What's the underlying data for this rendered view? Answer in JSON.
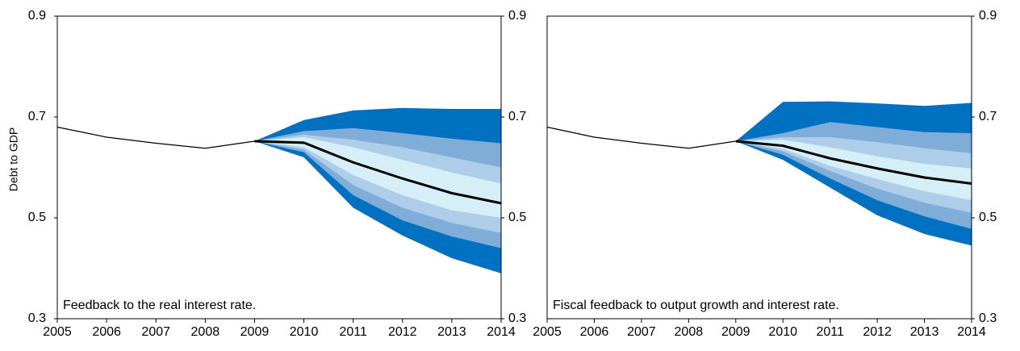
{
  "chart_data": [
    {
      "type": "fan",
      "annotation": "Feedback to the real interest rate.",
      "ylabel": "Debt to GDP",
      "x": [
        2005,
        2006,
        2007,
        2008,
        2009,
        2010,
        2011,
        2012,
        2013,
        2014
      ],
      "xlim": [
        2005,
        2014
      ],
      "xticks": [
        2005,
        2006,
        2007,
        2008,
        2009,
        2010,
        2011,
        2012,
        2013,
        2014
      ],
      "ylim": [
        0.3,
        0.9
      ],
      "yticks": [
        0.3,
        0.5,
        0.7,
        0.9
      ],
      "y2lim": [
        0.3,
        0.9
      ],
      "y2ticks": [
        0.3,
        0.5,
        0.7,
        0.9
      ],
      "bands": [
        {
          "color": "#0070c0",
          "upper": [
            null,
            null,
            null,
            null,
            0.652,
            0.694,
            0.713,
            0.718,
            0.716,
            0.716
          ],
          "lower": [
            null,
            null,
            null,
            null,
            0.652,
            0.62,
            0.52,
            0.465,
            0.42,
            0.39
          ]
        },
        {
          "color": "#7fadd8",
          "upper": [
            null,
            null,
            null,
            null,
            0.652,
            0.672,
            0.678,
            0.668,
            0.657,
            0.648
          ],
          "lower": [
            null,
            null,
            null,
            null,
            0.652,
            0.63,
            0.545,
            0.495,
            0.463,
            0.44
          ]
        },
        {
          "color": "#aecde8",
          "upper": [
            null,
            null,
            null,
            null,
            0.652,
            0.665,
            0.655,
            0.64,
            0.62,
            0.6
          ],
          "lower": [
            null,
            null,
            null,
            null,
            0.652,
            0.635,
            0.565,
            0.52,
            0.49,
            0.47
          ]
        },
        {
          "color": "#d6eef6",
          "upper": [
            null,
            null,
            null,
            null,
            0.652,
            0.66,
            0.64,
            0.615,
            0.59,
            0.568
          ],
          "lower": [
            null,
            null,
            null,
            null,
            0.652,
            0.64,
            0.585,
            0.545,
            0.515,
            0.5
          ]
        }
      ],
      "series": [
        {
          "color": "#000000",
          "width": 1.2,
          "values": [
            0.68,
            0.66,
            0.648,
            0.638,
            0.652,
            null,
            null,
            null,
            null,
            null
          ]
        },
        {
          "color": "#000000",
          "width": 3,
          "values": [
            null,
            null,
            null,
            null,
            0.652,
            0.649,
            0.61,
            0.578,
            0.549,
            0.529
          ]
        }
      ]
    },
    {
      "type": "fan",
      "annotation": "Fiscal feedback to output growth and interest rate.",
      "x": [
        2005,
        2006,
        2007,
        2008,
        2009,
        2010,
        2011,
        2012,
        2013,
        2014
      ],
      "xlim": [
        2005,
        2014
      ],
      "xticks": [
        2005,
        2006,
        2007,
        2008,
        2009,
        2010,
        2011,
        2012,
        2013,
        2014
      ],
      "ylim": [
        0.3,
        0.9
      ],
      "y2ticks": [
        0.3,
        0.5,
        0.7,
        0.9
      ],
      "bands": [
        {
          "color": "#0070c0",
          "upper": [
            null,
            null,
            null,
            null,
            0.652,
            0.73,
            0.731,
            0.727,
            0.722,
            0.728
          ],
          "lower": [
            null,
            null,
            null,
            null,
            0.652,
            0.615,
            0.56,
            0.505,
            0.468,
            0.445
          ]
        },
        {
          "color": "#7fadd8",
          "upper": [
            null,
            null,
            null,
            null,
            0.652,
            0.668,
            0.69,
            0.68,
            0.67,
            0.668
          ],
          "lower": [
            null,
            null,
            null,
            null,
            0.652,
            0.625,
            0.578,
            0.535,
            0.503,
            0.478
          ]
        },
        {
          "color": "#aecde8",
          "upper": [
            null,
            null,
            null,
            null,
            0.652,
            0.66,
            0.66,
            0.65,
            0.638,
            0.628
          ],
          "lower": [
            null,
            null,
            null,
            null,
            0.652,
            0.632,
            0.593,
            0.558,
            0.53,
            0.51
          ]
        },
        {
          "color": "#d6eef6",
          "upper": [
            null,
            null,
            null,
            null,
            0.652,
            0.655,
            0.64,
            0.622,
            0.607,
            0.598
          ],
          "lower": [
            null,
            null,
            null,
            null,
            0.652,
            0.637,
            0.603,
            0.577,
            0.553,
            0.535
          ]
        }
      ],
      "series": [
        {
          "color": "#000000",
          "width": 1.2,
          "values": [
            0.68,
            0.66,
            0.648,
            0.638,
            0.652,
            null,
            null,
            null,
            null,
            null
          ]
        },
        {
          "color": "#000000",
          "width": 3,
          "values": [
            null,
            null,
            null,
            null,
            0.652,
            0.643,
            0.618,
            0.598,
            0.58,
            0.568
          ]
        }
      ]
    }
  ]
}
